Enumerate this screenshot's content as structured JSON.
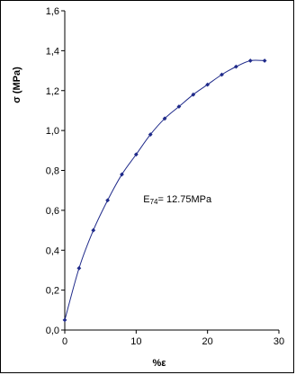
{
  "chart_data": {
    "type": "line",
    "xlabel": "%ε",
    "ylabel": "σ (MPa)",
    "xlim": [
      0,
      30
    ],
    "ylim": [
      0,
      1.6
    ],
    "x_ticks": [
      "0",
      "10",
      "20",
      "30"
    ],
    "y_ticks": [
      "0,0",
      "0,2",
      "0,4",
      "0,6",
      "0,8",
      "1,0",
      "1,2",
      "1,4",
      "1,6"
    ],
    "grid": false,
    "legend": "none",
    "annotation": {
      "prefix": "E",
      "subscript": "74",
      "text": "= 12.75MPa",
      "x": 11,
      "y": 0.64
    },
    "series": [
      {
        "color": "#1f2a8a",
        "marker": "diamond",
        "x": [
          0,
          2,
          4,
          6,
          8,
          10,
          12,
          14,
          16,
          18,
          20,
          22,
          24,
          26,
          28
        ],
        "y": [
          0.05,
          0.31,
          0.5,
          0.65,
          0.78,
          0.88,
          0.98,
          1.06,
          1.12,
          1.18,
          1.23,
          1.28,
          1.32,
          1.35,
          1.35
        ]
      }
    ]
  }
}
